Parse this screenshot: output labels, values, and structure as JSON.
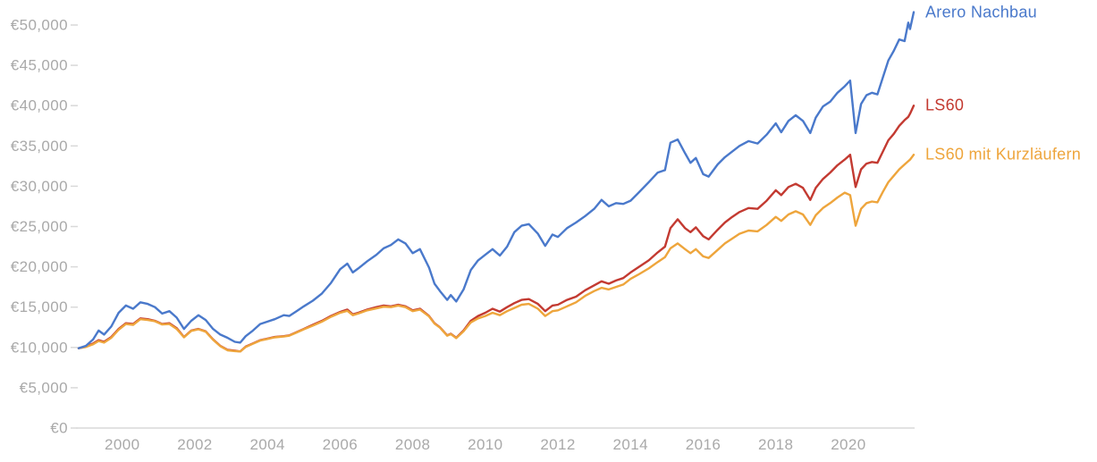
{
  "chart_data": {
    "type": "line",
    "title": "",
    "legend_position": "right-end-of-lines",
    "grid": false,
    "xlim": [
      1998.8,
      2021.8
    ],
    "ylim": [
      0,
      50000
    ],
    "axis_color": "#d9d9d9",
    "tick_label_color": "#a9a9a9",
    "y_ticks": [
      {
        "value": 0,
        "label": "€0"
      },
      {
        "value": 5000,
        "label": "€5,000"
      },
      {
        "value": 10000,
        "label": "€10,000"
      },
      {
        "value": 15000,
        "label": "€15,000"
      },
      {
        "value": 20000,
        "label": "€20,000"
      },
      {
        "value": 25000,
        "label": "€25,000"
      },
      {
        "value": 30000,
        "label": "€30,000"
      },
      {
        "value": 35000,
        "label": "€35,000"
      },
      {
        "value": 40000,
        "label": "€40,000"
      },
      {
        "value": 45000,
        "label": "€45,000"
      },
      {
        "value": 50000,
        "label": "€50,000"
      }
    ],
    "x_ticks": [
      {
        "value": 2000,
        "label": "2000"
      },
      {
        "value": 2002,
        "label": "2002"
      },
      {
        "value": 2004,
        "label": "2004"
      },
      {
        "value": 2006,
        "label": "2006"
      },
      {
        "value": 2008,
        "label": "2008"
      },
      {
        "value": 2010,
        "label": "2010"
      },
      {
        "value": 2012,
        "label": "2012"
      },
      {
        "value": 2014,
        "label": "2014"
      },
      {
        "value": 2016,
        "label": "2016"
      },
      {
        "value": 2018,
        "label": "2018"
      },
      {
        "value": 2020,
        "label": "2020"
      }
    ],
    "x": [
      1998.8,
      1999.0,
      1999.2,
      1999.35,
      1999.5,
      1999.7,
      1999.9,
      2000.1,
      2000.3,
      2000.5,
      2000.7,
      2000.9,
      2001.1,
      2001.3,
      2001.5,
      2001.7,
      2001.9,
      2002.1,
      2002.3,
      2002.5,
      2002.7,
      2002.9,
      2003.1,
      2003.25,
      2003.4,
      2003.6,
      2003.8,
      2004.0,
      2004.2,
      2004.45,
      2004.6,
      2004.8,
      2005.0,
      2005.25,
      2005.5,
      2005.75,
      2006.0,
      2006.2,
      2006.35,
      2006.5,
      2006.75,
      2007.0,
      2007.2,
      2007.4,
      2007.6,
      2007.8,
      2008.0,
      2008.2,
      2008.45,
      2008.6,
      2008.75,
      2008.95,
      2009.05,
      2009.2,
      2009.4,
      2009.6,
      2009.8,
      2010.0,
      2010.2,
      2010.4,
      2010.6,
      2010.8,
      2011.0,
      2011.2,
      2011.45,
      2011.65,
      2011.85,
      2012.0,
      2012.25,
      2012.5,
      2012.75,
      2013.0,
      2013.2,
      2013.4,
      2013.6,
      2013.8,
      2014.0,
      2014.2,
      2014.5,
      2014.75,
      2014.95,
      2015.1,
      2015.3,
      2015.5,
      2015.65,
      2015.8,
      2016.0,
      2016.15,
      2016.4,
      2016.6,
      2016.8,
      2017.0,
      2017.25,
      2017.5,
      2017.75,
      2018.0,
      2018.15,
      2018.35,
      2018.55,
      2018.75,
      2018.95,
      2019.1,
      2019.3,
      2019.5,
      2019.7,
      2019.9,
      2020.05,
      2020.2,
      2020.35,
      2020.5,
      2020.65,
      2020.8,
      2020.95,
      2021.1,
      2021.25,
      2021.4,
      2021.55,
      2021.65,
      2021.7,
      2021.8
    ],
    "series": [
      {
        "name": "Arero Nachbau",
        "color": "#4a79cb",
        "values": [
          9900,
          10200,
          11000,
          12100,
          11600,
          12600,
          14300,
          15200,
          14800,
          15600,
          15400,
          15000,
          14200,
          14500,
          13700,
          12300,
          13300,
          14000,
          13400,
          12300,
          11600,
          11200,
          10700,
          10600,
          11400,
          12100,
          12900,
          13200,
          13500,
          14000,
          13900,
          14500,
          15100,
          15800,
          16700,
          18000,
          19700,
          20400,
          19300,
          19800,
          20700,
          21500,
          22300,
          22700,
          23400,
          22900,
          21700,
          22200,
          19900,
          17900,
          17000,
          15900,
          16500,
          15700,
          17200,
          19600,
          20800,
          21500,
          22200,
          21400,
          22500,
          24300,
          25100,
          25300,
          24100,
          22600,
          24000,
          23700,
          24800,
          25500,
          26300,
          27200,
          28300,
          27500,
          27900,
          27800,
          28200,
          29100,
          30500,
          31700,
          32000,
          35400,
          35800,
          34100,
          32900,
          33500,
          31500,
          31200,
          32700,
          33600,
          34300,
          35000,
          35600,
          35300,
          36400,
          37800,
          36700,
          38100,
          38800,
          38100,
          36600,
          38500,
          39900,
          40500,
          41600,
          42400,
          43100,
          36600,
          40200,
          41300,
          41600,
          41400,
          43500,
          45600,
          46800,
          48200,
          48000,
          50300,
          49500,
          51600
        ]
      },
      {
        "name": "LS60",
        "color": "#c33a31",
        "values": [
          9900,
          10100,
          10500,
          10900,
          10700,
          11300,
          12300,
          13000,
          12900,
          13600,
          13500,
          13300,
          12900,
          13000,
          12400,
          11300,
          12100,
          12300,
          12000,
          11000,
          10200,
          9700,
          9600,
          9500,
          10100,
          10500,
          10900,
          11100,
          11300,
          11400,
          11500,
          11900,
          12300,
          12800,
          13300,
          13900,
          14400,
          14700,
          14100,
          14300,
          14700,
          15000,
          15200,
          15100,
          15300,
          15100,
          14600,
          14800,
          13900,
          13000,
          12500,
          11500,
          11700,
          11200,
          12100,
          13300,
          13900,
          14300,
          14800,
          14450,
          15000,
          15500,
          15900,
          16000,
          15400,
          14500,
          15200,
          15300,
          15900,
          16300,
          17100,
          17700,
          18200,
          17900,
          18300,
          18600,
          19300,
          19900,
          20800,
          21800,
          22500,
          24800,
          25900,
          24800,
          24300,
          24900,
          23800,
          23400,
          24600,
          25500,
          26200,
          26800,
          27300,
          27200,
          28200,
          29500,
          28900,
          29900,
          30300,
          29800,
          28300,
          29800,
          30900,
          31700,
          32600,
          33300,
          33900,
          29900,
          32100,
          32800,
          33000,
          32900,
          34300,
          35700,
          36500,
          37500,
          38200,
          38600,
          39000,
          40000
        ]
      },
      {
        "name": "LS60 mit Kurzläufern",
        "color": "#eea53c",
        "values": [
          9900,
          10050,
          10400,
          10800,
          10600,
          11200,
          12200,
          12900,
          12800,
          13500,
          13400,
          13250,
          12850,
          12900,
          12300,
          11250,
          12050,
          12250,
          11950,
          10950,
          10150,
          9650,
          9550,
          9500,
          10050,
          10450,
          10850,
          11050,
          11250,
          11350,
          11450,
          11850,
          12250,
          12700,
          13200,
          13800,
          14300,
          14550,
          14000,
          14200,
          14600,
          14850,
          15050,
          15000,
          15200,
          15000,
          14500,
          14700,
          13850,
          12950,
          12450,
          11450,
          11650,
          11150,
          12000,
          13100,
          13600,
          13900,
          14300,
          14000,
          14500,
          14900,
          15300,
          15400,
          14800,
          13900,
          14500,
          14600,
          15100,
          15600,
          16400,
          17000,
          17400,
          17200,
          17500,
          17800,
          18500,
          19000,
          19800,
          20600,
          21200,
          22300,
          22900,
          22200,
          21700,
          22200,
          21300,
          21100,
          22100,
          22900,
          23500,
          24100,
          24500,
          24400,
          25200,
          26200,
          25700,
          26500,
          26900,
          26500,
          25200,
          26400,
          27300,
          27900,
          28600,
          29200,
          28900,
          25100,
          27200,
          27900,
          28100,
          28000,
          29300,
          30500,
          31300,
          32100,
          32700,
          33100,
          33300,
          33900
        ]
      }
    ]
  }
}
